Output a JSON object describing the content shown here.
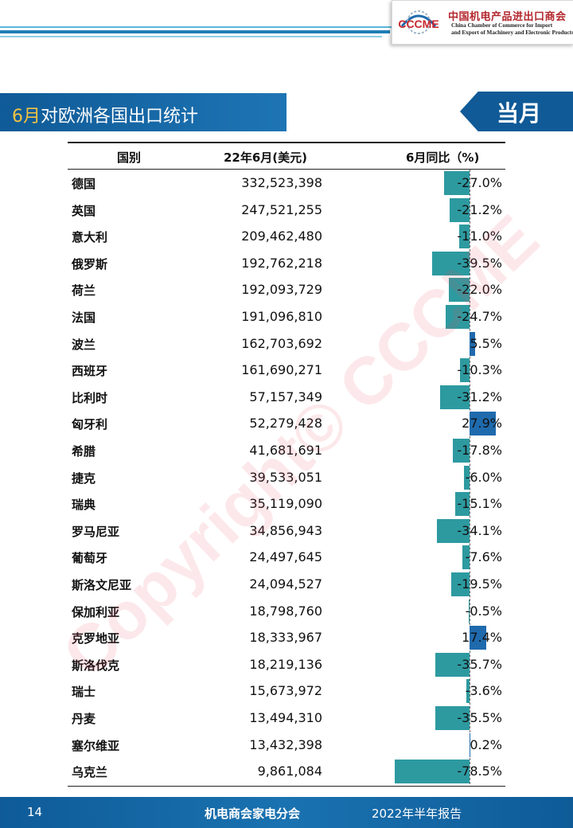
{
  "header": {
    "org_cn": "中国机电产品进出口商会",
    "org_en_line1": "China Chamber of Commerce for Import",
    "org_en_line2": "and Export of Machinery and Electronic Products",
    "logo_text": "CCCME"
  },
  "section": {
    "title_highlight": "6月",
    "title_rest": "对欧洲各国出口统计",
    "period_tag": "当月"
  },
  "watermark": "Copyright© CCCME",
  "table": {
    "columns": [
      "国别",
      "22年6月(美元)",
      "6月同比（%)"
    ],
    "rows": [
      {
        "country": "德国",
        "value": "332,523,398",
        "yoy": "-27.0%",
        "yoy_num": -27.0
      },
      {
        "country": "英国",
        "value": "247,521,255",
        "yoy": "-21.2%",
        "yoy_num": -21.2
      },
      {
        "country": "意大利",
        "value": "209,462,480",
        "yoy": "-11.0%",
        "yoy_num": -11.0
      },
      {
        "country": "俄罗斯",
        "value": "192,762,218",
        "yoy": "-39.5%",
        "yoy_num": -39.5
      },
      {
        "country": "荷兰",
        "value": "192,093,729",
        "yoy": "-22.0%",
        "yoy_num": -22.0
      },
      {
        "country": "法国",
        "value": "191,096,810",
        "yoy": "-24.7%",
        "yoy_num": -24.7
      },
      {
        "country": "波兰",
        "value": "162,703,692",
        "yoy": "5.5%",
        "yoy_num": 5.5
      },
      {
        "country": "西班牙",
        "value": "161,690,271",
        "yoy": "-10.3%",
        "yoy_num": -10.3
      },
      {
        "country": "比利时",
        "value": "57,157,349",
        "yoy": "-31.2%",
        "yoy_num": -31.2
      },
      {
        "country": "匈牙利",
        "value": "52,279,428",
        "yoy": "27.9%",
        "yoy_num": 27.9
      },
      {
        "country": "希腊",
        "value": "41,681,691",
        "yoy": "-17.8%",
        "yoy_num": -17.8
      },
      {
        "country": "捷克",
        "value": "39,533,051",
        "yoy": "-6.0%",
        "yoy_num": -6.0
      },
      {
        "country": "瑞典",
        "value": "35,119,090",
        "yoy": "-15.1%",
        "yoy_num": -15.1
      },
      {
        "country": "罗马尼亚",
        "value": "34,856,943",
        "yoy": "-34.1%",
        "yoy_num": -34.1
      },
      {
        "country": "葡萄牙",
        "value": "24,497,645",
        "yoy": "-7.6%",
        "yoy_num": -7.6
      },
      {
        "country": "斯洛文尼亚",
        "value": "24,094,527",
        "yoy": "-19.5%",
        "yoy_num": -19.5
      },
      {
        "country": "保加利亚",
        "value": "18,798,760",
        "yoy": "-0.5%",
        "yoy_num": -0.5
      },
      {
        "country": "克罗地亚",
        "value": "18,333,967",
        "yoy": "17.4%",
        "yoy_num": 17.4
      },
      {
        "country": "斯洛伐克",
        "value": "18,219,136",
        "yoy": "-35.7%",
        "yoy_num": -35.7
      },
      {
        "country": "瑞士",
        "value": "15,673,972",
        "yoy": "-3.6%",
        "yoy_num": -3.6
      },
      {
        "country": "丹麦",
        "value": "13,494,310",
        "yoy": "-35.5%",
        "yoy_num": -35.5
      },
      {
        "country": "塞尔维亚",
        "value": "13,432,398",
        "yoy": "0.2%",
        "yoy_num": 0.2
      },
      {
        "country": "乌克兰",
        "value": "9,861,084",
        "yoy": "-78.5%",
        "yoy_num": -78.5
      }
    ],
    "colors": {
      "negative_bar": "#2d9aa0",
      "positive_bar": "#1f6aad"
    }
  },
  "footer": {
    "page_number": "14",
    "org": "机电商会家电分会",
    "doc_title": "2022年半年报告"
  }
}
